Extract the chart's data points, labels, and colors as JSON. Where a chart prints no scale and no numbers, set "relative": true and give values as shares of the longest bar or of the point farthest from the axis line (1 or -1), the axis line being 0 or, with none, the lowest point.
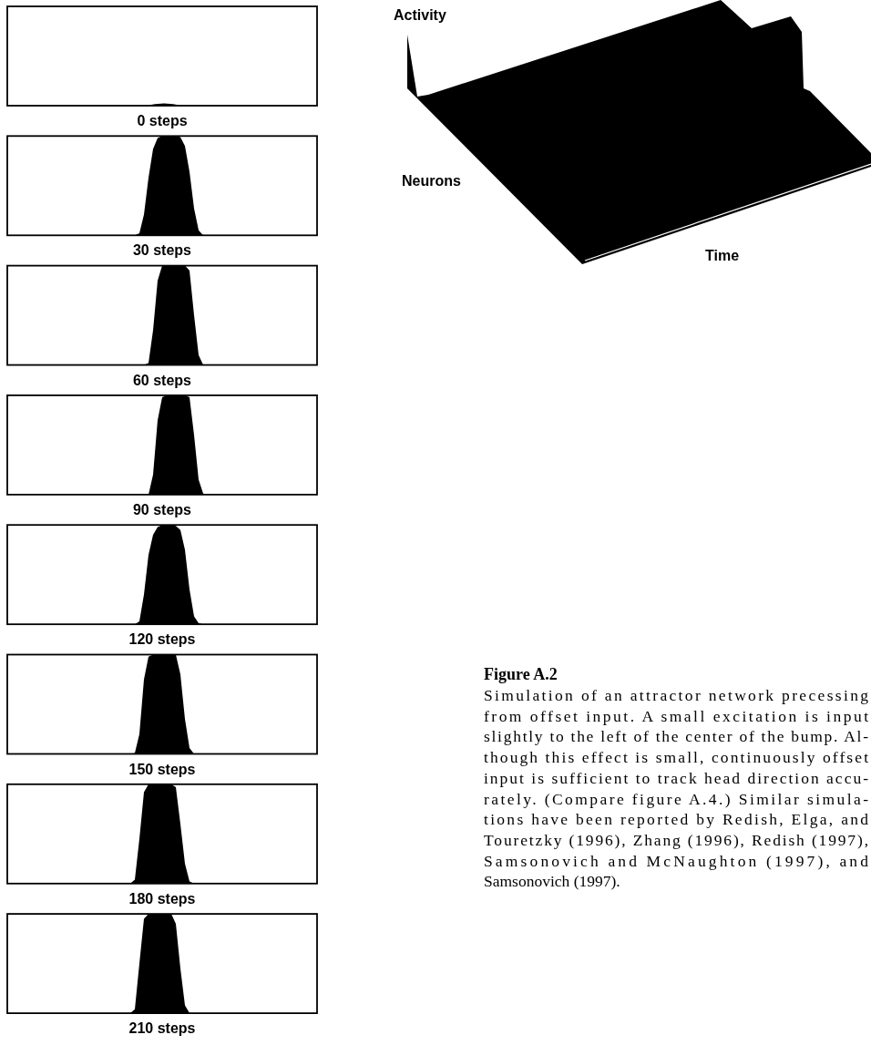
{
  "chart_data": [
    {
      "type": "other",
      "xlabel": "0 steps"
    },
    {
      "type": "area",
      "relative": true,
      "xlabel": "30 steps",
      "color": "#000000",
      "categories": [
        null,
        null,
        null,
        null,
        null,
        null,
        null,
        null,
        null,
        null,
        null,
        null,
        null,
        null,
        null,
        null,
        null,
        null,
        null,
        null,
        null,
        null,
        null,
        null,
        null,
        null,
        null,
        null,
        null,
        null,
        null,
        null,
        null,
        null,
        null,
        null,
        null,
        null,
        null,
        null,
        null,
        null,
        null,
        null,
        null,
        null,
        null,
        null,
        null,
        null,
        null,
        null,
        null,
        null,
        null,
        null,
        null,
        null,
        null,
        null,
        null,
        null,
        null,
        null,
        null,
        null,
        null,
        null,
        null
      ],
      "values": [
        0,
        0,
        0,
        0,
        0,
        0,
        0,
        0,
        0,
        0,
        0,
        0,
        0,
        0,
        0,
        0,
        0,
        0,
        0,
        0,
        0,
        0,
        0,
        0,
        0,
        0,
        0,
        0,
        0,
        0.02,
        0.21,
        0.58,
        0.87,
        0.98,
        1,
        1,
        1,
        1,
        0.99,
        0.9,
        0.64,
        0.27,
        0.05,
        0,
        0,
        0,
        0,
        0,
        0,
        0,
        0,
        0,
        0,
        0,
        0,
        0,
        0,
        0,
        0,
        0,
        0,
        0,
        0,
        0,
        0,
        0,
        0,
        0,
        0
      ]
    },
    {
      "type": "area",
      "relative": true,
      "xlabel": "60 steps",
      "color": "#000000",
      "categories": [
        null,
        null,
        null,
        null,
        null,
        null,
        null,
        null,
        null,
        null,
        null,
        null,
        null,
        null,
        null,
        null,
        null,
        null,
        null,
        null,
        null,
        null,
        null,
        null,
        null,
        null,
        null,
        null,
        null,
        null,
        null,
        null,
        null,
        null,
        null,
        null,
        null,
        null,
        null,
        null,
        null,
        null,
        null,
        null,
        null,
        null,
        null,
        null,
        null,
        null,
        null,
        null,
        null,
        null,
        null,
        null,
        null,
        null,
        null,
        null,
        null,
        null,
        null,
        null,
        null,
        null,
        null,
        null,
        null
      ],
      "values": [
        0,
        0,
        0,
        0,
        0,
        0,
        0,
        0,
        0,
        0,
        0,
        0,
        0,
        0,
        0,
        0,
        0,
        0,
        0,
        0,
        0,
        0,
        0,
        0,
        0,
        0,
        0,
        0,
        0,
        0,
        0,
        0.02,
        0.35,
        0.85,
        1,
        1,
        1,
        1,
        1,
        1,
        0.95,
        0.5,
        0.1,
        0,
        0,
        0,
        0,
        0,
        0,
        0,
        0,
        0,
        0,
        0,
        0,
        0,
        0,
        0,
        0,
        0,
        0,
        0,
        0,
        0,
        0,
        0,
        0,
        0,
        0
      ]
    },
    {
      "type": "area",
      "relative": true,
      "xlabel": "90 steps",
      "color": "#000000",
      "categories": [
        null,
        null,
        null,
        null,
        null,
        null,
        null,
        null,
        null,
        null,
        null,
        null,
        null,
        null,
        null,
        null,
        null,
        null,
        null,
        null,
        null,
        null,
        null,
        null,
        null,
        null,
        null,
        null,
        null,
        null,
        null,
        null,
        null,
        null,
        null,
        null,
        null,
        null,
        null,
        null,
        null,
        null,
        null,
        null,
        null,
        null,
        null,
        null,
        null,
        null,
        null,
        null,
        null,
        null,
        null,
        null,
        null,
        null,
        null,
        null,
        null,
        null,
        null,
        null,
        null,
        null,
        null,
        null,
        null
      ],
      "values": [
        0,
        0,
        0,
        0,
        0,
        0,
        0,
        0,
        0,
        0,
        0,
        0,
        0,
        0,
        0,
        0,
        0,
        0,
        0,
        0,
        0,
        0,
        0,
        0,
        0,
        0,
        0,
        0,
        0,
        0,
        0,
        0,
        0.2,
        0.75,
        0.98,
        1,
        1,
        1,
        1,
        1,
        0.98,
        0.6,
        0.15,
        0.01,
        0,
        0,
        0,
        0,
        0,
        0,
        0,
        0,
        0,
        0,
        0,
        0,
        0,
        0,
        0,
        0,
        0,
        0,
        0,
        0,
        0,
        0,
        0,
        0,
        0
      ]
    },
    {
      "type": "area",
      "relative": true,
      "xlabel": "120 steps",
      "color": "#000000",
      "categories": [
        null,
        null,
        null,
        null,
        null,
        null,
        null,
        null,
        null,
        null,
        null,
        null,
        null,
        null,
        null,
        null,
        null,
        null,
        null,
        null,
        null,
        null,
        null,
        null,
        null,
        null,
        null,
        null,
        null,
        null,
        null,
        null,
        null,
        null,
        null,
        null,
        null,
        null,
        null,
        null,
        null,
        null,
        null,
        null,
        null,
        null,
        null,
        null,
        null,
        null,
        null,
        null,
        null,
        null,
        null,
        null,
        null,
        null,
        null,
        null,
        null,
        null,
        null,
        null,
        null,
        null,
        null,
        null,
        null
      ],
      "values": [
        0,
        0,
        0,
        0,
        0,
        0,
        0,
        0,
        0,
        0,
        0,
        0,
        0,
        0,
        0,
        0,
        0,
        0,
        0,
        0,
        0,
        0,
        0,
        0,
        0,
        0,
        0,
        0,
        0,
        0.03,
        0.3,
        0.7,
        0.9,
        0.98,
        1,
        1,
        1,
        0.99,
        0.95,
        0.75,
        0.35,
        0.08,
        0.01,
        0,
        0,
        0,
        0,
        0,
        0,
        0,
        0,
        0,
        0,
        0,
        0,
        0,
        0,
        0,
        0,
        0,
        0,
        0,
        0,
        0,
        0,
        0,
        0,
        0,
        0
      ]
    },
    {
      "type": "area",
      "relative": true,
      "xlabel": "150 steps",
      "color": "#000000",
      "categories": [
        null,
        null,
        null,
        null,
        null,
        null,
        null,
        null,
        null,
        null,
        null,
        null,
        null,
        null,
        null,
        null,
        null,
        null,
        null,
        null,
        null,
        null,
        null,
        null,
        null,
        null,
        null,
        null,
        null,
        null,
        null,
        null,
        null,
        null,
        null,
        null,
        null,
        null,
        null,
        null,
        null,
        null,
        null,
        null,
        null,
        null,
        null,
        null,
        null,
        null,
        null,
        null,
        null,
        null,
        null,
        null,
        null,
        null,
        null,
        null,
        null,
        null,
        null,
        null,
        null,
        null,
        null,
        null,
        null
      ],
      "values": [
        0,
        0,
        0,
        0,
        0,
        0,
        0,
        0,
        0,
        0,
        0,
        0,
        0,
        0,
        0,
        0,
        0,
        0,
        0,
        0,
        0,
        0,
        0,
        0,
        0,
        0,
        0,
        0,
        0.01,
        0.2,
        0.75,
        0.98,
        1,
        1,
        1,
        1,
        1,
        1,
        0.8,
        0.35,
        0.06,
        0,
        0,
        0,
        0,
        0,
        0,
        0,
        0,
        0,
        0,
        0,
        0,
        0,
        0,
        0,
        0,
        0,
        0,
        0,
        0,
        0,
        0,
        0,
        0,
        0,
        0,
        0,
        0
      ]
    },
    {
      "type": "area",
      "relative": true,
      "xlabel": "180 steps",
      "color": "#000000",
      "categories": [
        null,
        null,
        null,
        null,
        null,
        null,
        null,
        null,
        null,
        null,
        null,
        null,
        null,
        null,
        null,
        null,
        null,
        null,
        null,
        null,
        null,
        null,
        null,
        null,
        null,
        null,
        null,
        null,
        null,
        null,
        null,
        null,
        null,
        null,
        null,
        null,
        null,
        null,
        null,
        null,
        null,
        null,
        null,
        null,
        null,
        null,
        null,
        null,
        null,
        null,
        null,
        null,
        null,
        null,
        null,
        null,
        null,
        null,
        null,
        null,
        null,
        null,
        null,
        null,
        null,
        null,
        null,
        null,
        null
      ],
      "values": [
        0,
        0,
        0,
        0,
        0,
        0,
        0,
        0,
        0,
        0,
        0,
        0,
        0,
        0,
        0,
        0,
        0,
        0,
        0,
        0,
        0,
        0,
        0,
        0,
        0,
        0,
        0,
        0,
        0.04,
        0.45,
        0.92,
        1,
        1,
        1,
        1,
        1,
        1,
        0.97,
        0.6,
        0.2,
        0.02,
        0,
        0,
        0,
        0,
        0,
        0,
        0,
        0,
        0,
        0,
        0,
        0,
        0,
        0,
        0,
        0,
        0,
        0,
        0,
        0,
        0,
        0,
        0,
        0,
        0,
        0,
        0,
        0
      ]
    },
    {
      "type": "area",
      "relative": true,
      "xlabel": "210 steps",
      "color": "#000000",
      "categories": [
        null,
        null,
        null,
        null,
        null,
        null,
        null,
        null,
        null,
        null,
        null,
        null,
        null,
        null,
        null,
        null,
        null,
        null,
        null,
        null,
        null,
        null,
        null,
        null,
        null,
        null,
        null,
        null,
        null,
        null,
        null,
        null,
        null,
        null,
        null,
        null,
        null,
        null,
        null,
        null,
        null,
        null,
        null,
        null,
        null,
        null,
        null,
        null,
        null,
        null,
        null,
        null,
        null,
        null,
        null,
        null,
        null,
        null,
        null,
        null,
        null,
        null,
        null,
        null,
        null,
        null,
        null,
        null,
        null
      ],
      "values": [
        0,
        0,
        0,
        0,
        0,
        0,
        0,
        0,
        0,
        0,
        0,
        0,
        0,
        0,
        0,
        0,
        0,
        0,
        0,
        0,
        0,
        0,
        0,
        0,
        0,
        0,
        0,
        0,
        0.04,
        0.5,
        0.95,
        1,
        1,
        1,
        1,
        1,
        1,
        0.9,
        0.45,
        0.08,
        0,
        0,
        0,
        0,
        0,
        0,
        0,
        0,
        0,
        0,
        0,
        0,
        0,
        0,
        0,
        0,
        0,
        0,
        0,
        0,
        0,
        0,
        0,
        0,
        0,
        0,
        0,
        0,
        0
      ]
    },
    {
      "type": "other",
      "xlabel": "Time",
      "ylabel": "Activity",
      "annotations": [
        "Neurons"
      ]
    },
    {
      "type": "other",
      "title": "Figure A.2",
      "annotations": [
        "Simulation of an attractor network precessing",
        "from offset input. A small excitation is input",
        "slightly to the left of the center of the bump. Al-",
        "though this effect is small, continuously offset",
        "input is sufficient to track head direction accu-",
        "rately. (Compare figure A.4.) Similar simula-",
        "tions have been reported by Redish, Elga, and",
        "Touretzky (1996), Zhang (1996), Redish (1997),",
        "Samsonovich and McNaughton (1997), and",
        "Samsonovich (1997)."
      ]
    }
  ]
}
